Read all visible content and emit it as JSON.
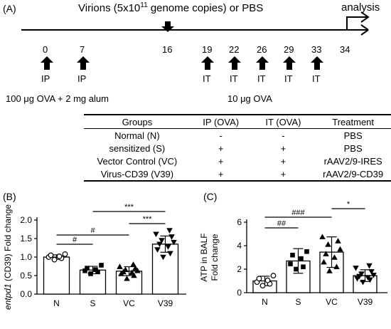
{
  "panelA": {
    "label": "(A)",
    "top_note": "Virions (5x10",
    "top_note_exp": "11",
    "top_note_rest": " genome copies) or PBS",
    "analysis": "analysis",
    "days": [
      "0",
      "7",
      "16",
      "19",
      "22",
      "26",
      "29",
      "33",
      "34"
    ],
    "ip_label": "IP",
    "it_label": "IT",
    "sensitize_text": "100 μg OVA + 2 mg alum",
    "challenge_text": "10 μg OVA",
    "table": {
      "headers": [
        "Groups",
        "IP (OVA)",
        "IT (OVA)",
        "Treatment"
      ],
      "rows": [
        [
          "Normal (N)",
          "-",
          "-",
          "PBS"
        ],
        [
          "sensitized (S)",
          "+",
          "+",
          "PBS"
        ],
        [
          "Vector Control (VC)",
          "+",
          "+",
          "rAAV2/9-IRES"
        ],
        [
          "Virus-CD39 (V39)",
          "+",
          "+",
          "rAAV2/9-CD39"
        ]
      ]
    }
  },
  "chart_data": [
    {
      "panel": "(B)",
      "type": "bar",
      "ylabel_gene": "entpd1",
      "ylabel_rest": " (CD39) Fold change",
      "categories": [
        "N",
        "S",
        "VC",
        "V39"
      ],
      "values": [
        1.0,
        0.65,
        0.62,
        1.35
      ],
      "errors": [
        0.06,
        0.1,
        0.12,
        0.22
      ],
      "ylim": [
        0.0,
        2.0
      ],
      "yticks": [
        "0.0",
        "0.5",
        "1.0",
        "1.5",
        "2.0"
      ],
      "markers": [
        "circle",
        "square",
        "triangle",
        "triangle-down"
      ],
      "points": [
        [
          0.93,
          0.97,
          1.0,
          1.02,
          1.05,
          1.08
        ],
        [
          0.55,
          0.6,
          0.63,
          0.66,
          0.7,
          0.78
        ],
        [
          0.42,
          0.5,
          0.55,
          0.58,
          0.6,
          0.63,
          0.66,
          0.7,
          0.74,
          0.8
        ],
        [
          1.0,
          1.1,
          1.2,
          1.28,
          1.35,
          1.4,
          1.45,
          1.55,
          1.62,
          1.72
        ]
      ],
      "significance": [
        {
          "from": 0,
          "to": 1,
          "label": "#"
        },
        {
          "from": 0,
          "to": 2,
          "label": "#"
        },
        {
          "from": 1,
          "to": 3,
          "label": "***"
        },
        {
          "from": 2,
          "to": 3,
          "label": "***"
        }
      ]
    },
    {
      "panel": "(C)",
      "type": "bar",
      "ylabel_lines": [
        "ATP in BALF",
        "Fold change"
      ],
      "categories": [
        "N",
        "S",
        "VC",
        "V39"
      ],
      "values": [
        1.0,
        2.7,
        3.45,
        1.45
      ],
      "errors": [
        0.4,
        1.05,
        1.3,
        0.5
      ],
      "ylim": [
        0,
        6
      ],
      "yticks": [
        "0",
        "2",
        "4",
        "6"
      ],
      "markers": [
        "circle",
        "square",
        "triangle",
        "triangle-down"
      ],
      "points": [
        [
          0.6,
          0.75,
          0.9,
          1.05,
          1.2,
          1.45
        ],
        [
          2.0,
          2.2,
          2.45,
          2.9,
          3.2,
          3.5
        ],
        [
          1.85,
          2.2,
          2.6,
          3.0,
          3.3,
          3.7,
          4.1,
          4.4,
          4.75
        ],
        [
          0.9,
          1.1,
          1.2,
          1.3,
          1.4,
          1.5,
          1.6,
          1.8,
          2.1,
          2.3
        ]
      ],
      "significance": [
        {
          "from": 0,
          "to": 1,
          "label": "##"
        },
        {
          "from": 0,
          "to": 2,
          "label": "###"
        },
        {
          "from": 2,
          "to": 3,
          "label": "*"
        },
        {
          "from": 1,
          "to": 3,
          "label": "*"
        }
      ]
    }
  ]
}
